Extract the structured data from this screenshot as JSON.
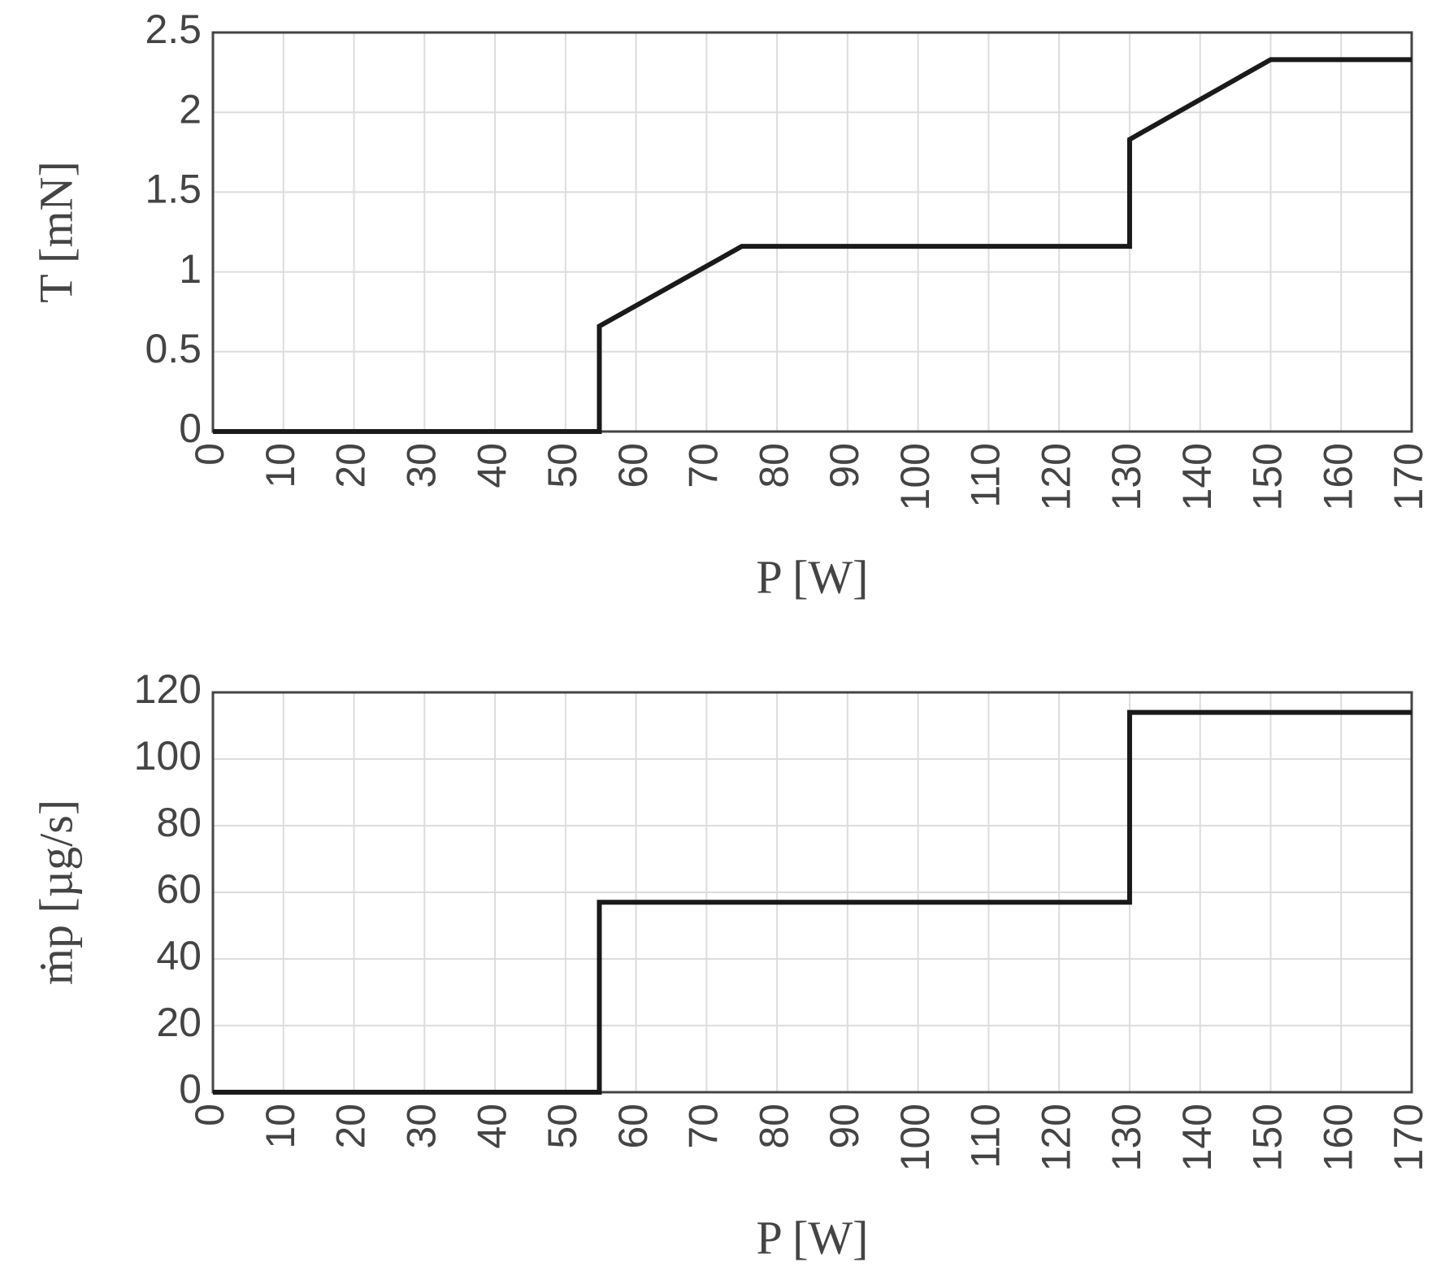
{
  "chart_data": [
    {
      "type": "line",
      "x_label": "P [W]",
      "y_label": "T [mN]",
      "x": [
        0,
        54.8,
        54.8,
        75,
        130,
        130,
        150,
        170
      ],
      "values": [
        0,
        0,
        0.66,
        1.16,
        1.16,
        1.83,
        2.33,
        2.33
      ],
      "color": "#1a1a1a",
      "xlim": [
        0,
        170
      ],
      "xticks": [
        0,
        10,
        20,
        30,
        40,
        50,
        60,
        70,
        80,
        90,
        100,
        110,
        120,
        130,
        140,
        150,
        160,
        170
      ],
      "ylim": [
        0,
        2.5
      ],
      "yticks": [
        0,
        0.5,
        1,
        1.5,
        2,
        2.5
      ],
      "grid": true
    },
    {
      "type": "line",
      "x_label": "P [W]",
      "y_label": "ṁp [µg/s]",
      "x": [
        0,
        54.8,
        54.8,
        130,
        130,
        170
      ],
      "values": [
        0,
        0,
        57,
        57,
        114,
        114
      ],
      "color": "#1a1a1a",
      "xlim": [
        0,
        170
      ],
      "xticks": [
        0,
        10,
        20,
        30,
        40,
        50,
        60,
        70,
        80,
        90,
        100,
        110,
        120,
        130,
        140,
        150,
        160,
        170
      ],
      "ylim": [
        0,
        120
      ],
      "yticks": [
        0,
        20,
        40,
        60,
        80,
        100,
        120
      ],
      "grid": true
    }
  ]
}
